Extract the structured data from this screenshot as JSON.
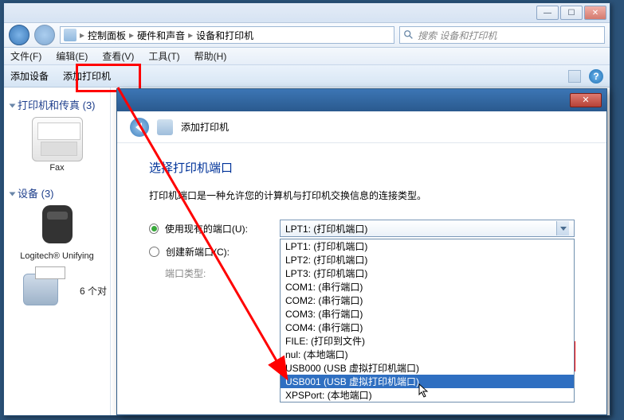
{
  "explorer": {
    "breadcrumb": {
      "root": "控制面板",
      "l1": "硬件和声音",
      "l2": "设备和打印机"
    },
    "search_placeholder": "搜索 设备和打印机",
    "menu": {
      "file": "文件(F)",
      "edit": "编辑(E)",
      "view": "查看(V)",
      "tools": "工具(T)",
      "help": "帮助(H)"
    },
    "toolbar": {
      "add_device": "添加设备",
      "add_printer": "添加打印机"
    },
    "sidebar": {
      "group1": "打印机和传真 (3)",
      "fax_label": "Fax",
      "group2": "设备 (3)",
      "logitech_label": "Logitech® Unifying",
      "partial": "6 个对"
    }
  },
  "wizard": {
    "title": "添加打印机",
    "heading": "选择打印机端口",
    "desc": "打印机端口是一种允许您的计算机与打印机交换信息的连接类型。",
    "radio_existing": "使用现有的端口(U):",
    "radio_new": "创建新端口(C):",
    "port_type_label": "端口类型:",
    "combo_selected": "LPT1: (打印机端口)",
    "options": [
      "LPT1: (打印机端口)",
      "LPT2: (打印机端口)",
      "LPT3: (打印机端口)",
      "COM1: (串行端口)",
      "COM2: (串行端口)",
      "COM3: (串行端口)",
      "COM4: (串行端口)",
      "FILE: (打印到文件)",
      "nul: (本地端口)",
      "USB000 (USB 虚拟打印机端口)",
      "USB001 (USB 虚拟打印机端口)",
      "XPSPort: (本地端口)"
    ],
    "selected_index": 10
  },
  "colors": {
    "accent_red": "#ff0000",
    "link_blue": "#003399",
    "sel_blue": "#2f6fc1"
  }
}
